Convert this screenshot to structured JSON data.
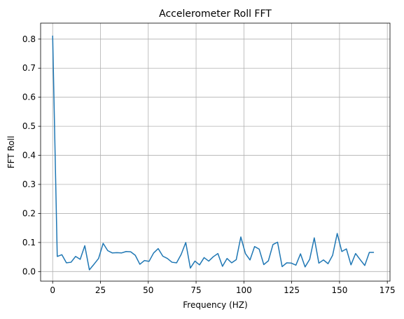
{
  "chart_data": {
    "type": "line",
    "title": "Accelerometer Roll FFT",
    "xlabel": "Frequency (HZ)",
    "ylabel": "FFT Roll",
    "xlim": [
      -6.3,
      176.4
    ],
    "ylim": [
      -0.033,
      0.855
    ],
    "xticks": [
      0,
      25,
      50,
      75,
      100,
      125,
      150,
      175
    ],
    "yticks": [
      0.0,
      0.1,
      0.2,
      0.3,
      0.4,
      0.5,
      0.6,
      0.7,
      0.8
    ],
    "xtick_labels": [
      "0",
      "25",
      "50",
      "75",
      "100",
      "125",
      "150",
      "175"
    ],
    "ytick_labels": [
      "0.0",
      "0.1",
      "0.2",
      "0.3",
      "0.4",
      "0.5",
      "0.6",
      "0.7",
      "0.8"
    ],
    "grid": true,
    "color": "#1f77b4",
    "series": [
      {
        "x": [
          0.0,
          2.4,
          4.8,
          7.2,
          9.6,
          12.0,
          14.4,
          16.8,
          19.2,
          21.6,
          24.0,
          26.4,
          28.8,
          31.2,
          33.6,
          36.0,
          38.4,
          40.8,
          43.2,
          45.6,
          48.0,
          50.4,
          52.8,
          55.2,
          57.6,
          60.0,
          62.4,
          64.8,
          67.2,
          69.6,
          72.0,
          74.4,
          76.8,
          79.2,
          81.6,
          84.0,
          86.4,
          88.8,
          91.2,
          93.6,
          96.0,
          98.4,
          100.8,
          103.2,
          105.6,
          108.0,
          110.4,
          112.8,
          115.2,
          117.6,
          120.0,
          122.4,
          124.8,
          127.2,
          129.6,
          132.0,
          134.4,
          136.8,
          139.2,
          141.6,
          144.0,
          146.4,
          148.8,
          151.2,
          153.6,
          156.0,
          158.4,
          160.8,
          163.2,
          165.6,
          168.0
        ],
        "y": [
          0.812,
          0.052,
          0.058,
          0.03,
          0.032,
          0.052,
          0.042,
          0.089,
          0.006,
          0.025,
          0.045,
          0.097,
          0.072,
          0.064,
          0.065,
          0.064,
          0.069,
          0.068,
          0.056,
          0.025,
          0.038,
          0.035,
          0.064,
          0.079,
          0.053,
          0.045,
          0.032,
          0.03,
          0.059,
          0.1,
          0.012,
          0.036,
          0.023,
          0.048,
          0.036,
          0.051,
          0.062,
          0.018,
          0.045,
          0.03,
          0.041,
          0.119,
          0.062,
          0.04,
          0.086,
          0.077,
          0.024,
          0.037,
          0.093,
          0.101,
          0.017,
          0.03,
          0.029,
          0.022,
          0.061,
          0.016,
          0.042,
          0.116,
          0.029,
          0.04,
          0.027,
          0.056,
          0.131,
          0.069,
          0.078,
          0.023,
          0.062,
          0.041,
          0.021,
          0.066,
          0.066
        ]
      }
    ]
  }
}
